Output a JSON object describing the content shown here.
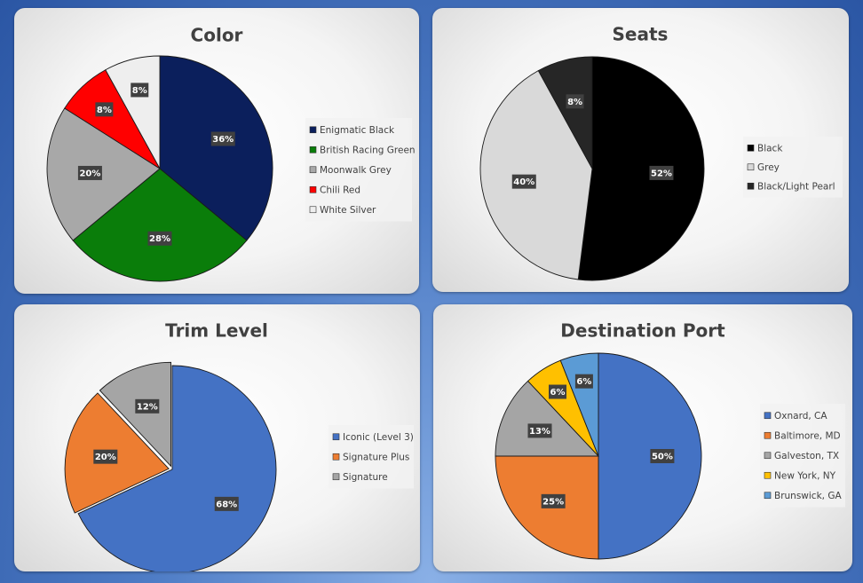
{
  "chart_data": [
    {
      "type": "pie",
      "title": "Color",
      "categories": [
        "Enigmatic Black",
        "British Racing Green",
        "Moonwalk Grey",
        "Chili Red",
        "White Silver"
      ],
      "values": [
        36,
        28,
        20,
        8,
        8
      ],
      "labels": [
        "36%",
        "28%",
        "20%",
        "8%",
        "8%"
      ],
      "colors": [
        "#0b1f5c",
        "#0a7d0a",
        "#a8a8a8",
        "#ff0000",
        "#eeeeee"
      ],
      "legend": "right"
    },
    {
      "type": "pie",
      "title": "Seats",
      "categories": [
        "Black",
        "Grey",
        "Black/Light Pearl"
      ],
      "values": [
        52,
        40,
        8
      ],
      "labels": [
        "52%",
        "40%",
        "8%"
      ],
      "colors": [
        "#000000",
        "#d9d9d9",
        "#262626"
      ],
      "legend": "right"
    },
    {
      "type": "pie",
      "title": "Trim Level",
      "categories": [
        "Iconic (Level 3)",
        "Signature Plus",
        "Signature"
      ],
      "values": [
        68,
        20,
        12
      ],
      "labels": [
        "68%",
        "20%",
        "12%"
      ],
      "colors": [
        "#4472c4",
        "#ed7d31",
        "#a5a5a5"
      ],
      "legend": "right"
    },
    {
      "type": "pie",
      "title": "Destination Port",
      "categories": [
        "Oxnard, CA",
        "Baltimore, MD",
        "Galveston, TX",
        "New York, NY",
        "Brunswick, GA"
      ],
      "values": [
        50,
        25,
        13,
        6,
        6
      ],
      "labels": [
        "50%",
        "25%",
        "13%",
        "6%",
        "6%"
      ],
      "colors": [
        "#4472c4",
        "#ed7d31",
        "#a5a5a5",
        "#ffc000",
        "#5b9bd5"
      ],
      "legend": "right"
    }
  ]
}
